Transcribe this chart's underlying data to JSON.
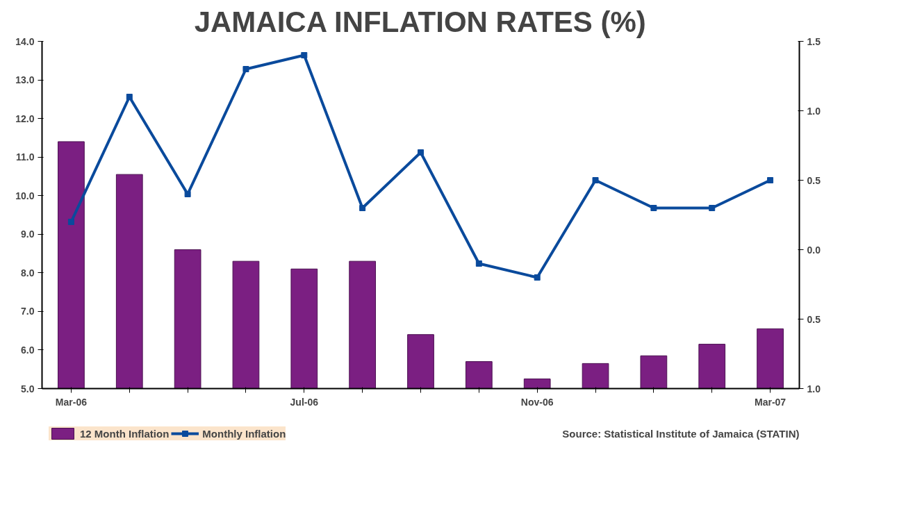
{
  "chart_data": {
    "type": "bar",
    "title": "JAMAICA INFLATION RATES (%)",
    "categories": [
      "Mar-06",
      null,
      null,
      null,
      "Jul-06",
      null,
      null,
      null,
      "Nov-06",
      null,
      null,
      null,
      "Mar-07"
    ],
    "series": [
      {
        "name": "12 Month Inflation",
        "color": "#7b1f82",
        "values": [
          11.4,
          10.55,
          8.6,
          8.3,
          8.1,
          8.3,
          6.4,
          5.7,
          5.25,
          5.65,
          5.85,
          6.15,
          6.55
        ]
      },
      {
        "name": "Monthly Inflation",
        "type": "line",
        "axis": "y2",
        "color": "#0a4a9c",
        "marker": "square",
        "values": [
          0.2,
          1.1,
          0.4,
          1.3,
          1.4,
          0.3,
          0.7,
          -0.1,
          -0.2,
          0.5,
          0.3,
          0.3,
          0.5
        ]
      }
    ],
    "ylim": [
      5.0,
      14.0
    ],
    "yticks": [
      {
        "value": 5,
        "label": "5.0"
      },
      {
        "value": 6,
        "label": "6.0"
      },
      {
        "value": 7,
        "label": "7.0"
      },
      {
        "value": 8,
        "label": "8.0"
      },
      {
        "value": 9,
        "label": "9.0"
      },
      {
        "value": 10,
        "label": "10.0"
      },
      {
        "value": 11,
        "label": "11.0"
      },
      {
        "value": 12,
        "label": "12.0"
      },
      {
        "value": 13,
        "label": "13.0"
      },
      {
        "value": 14,
        "label": "14.0"
      }
    ],
    "y2lim": [
      -1.0,
      1.5
    ],
    "y2ticks": [
      {
        "value": -1.0,
        "label": "1.0"
      },
      {
        "value": -0.5,
        "label": "0.5"
      },
      {
        "value": 0.0,
        "label": "0.0"
      },
      {
        "value": 0.5,
        "label": "0.5"
      },
      {
        "value": 1.0,
        "label": "1.0"
      },
      {
        "value": 1.5,
        "label": "1.5"
      }
    ],
    "legend": "bottom left",
    "grid": false,
    "annotations": [
      "Source: Statistical Institute of Jamaica (STATIN)"
    ]
  }
}
